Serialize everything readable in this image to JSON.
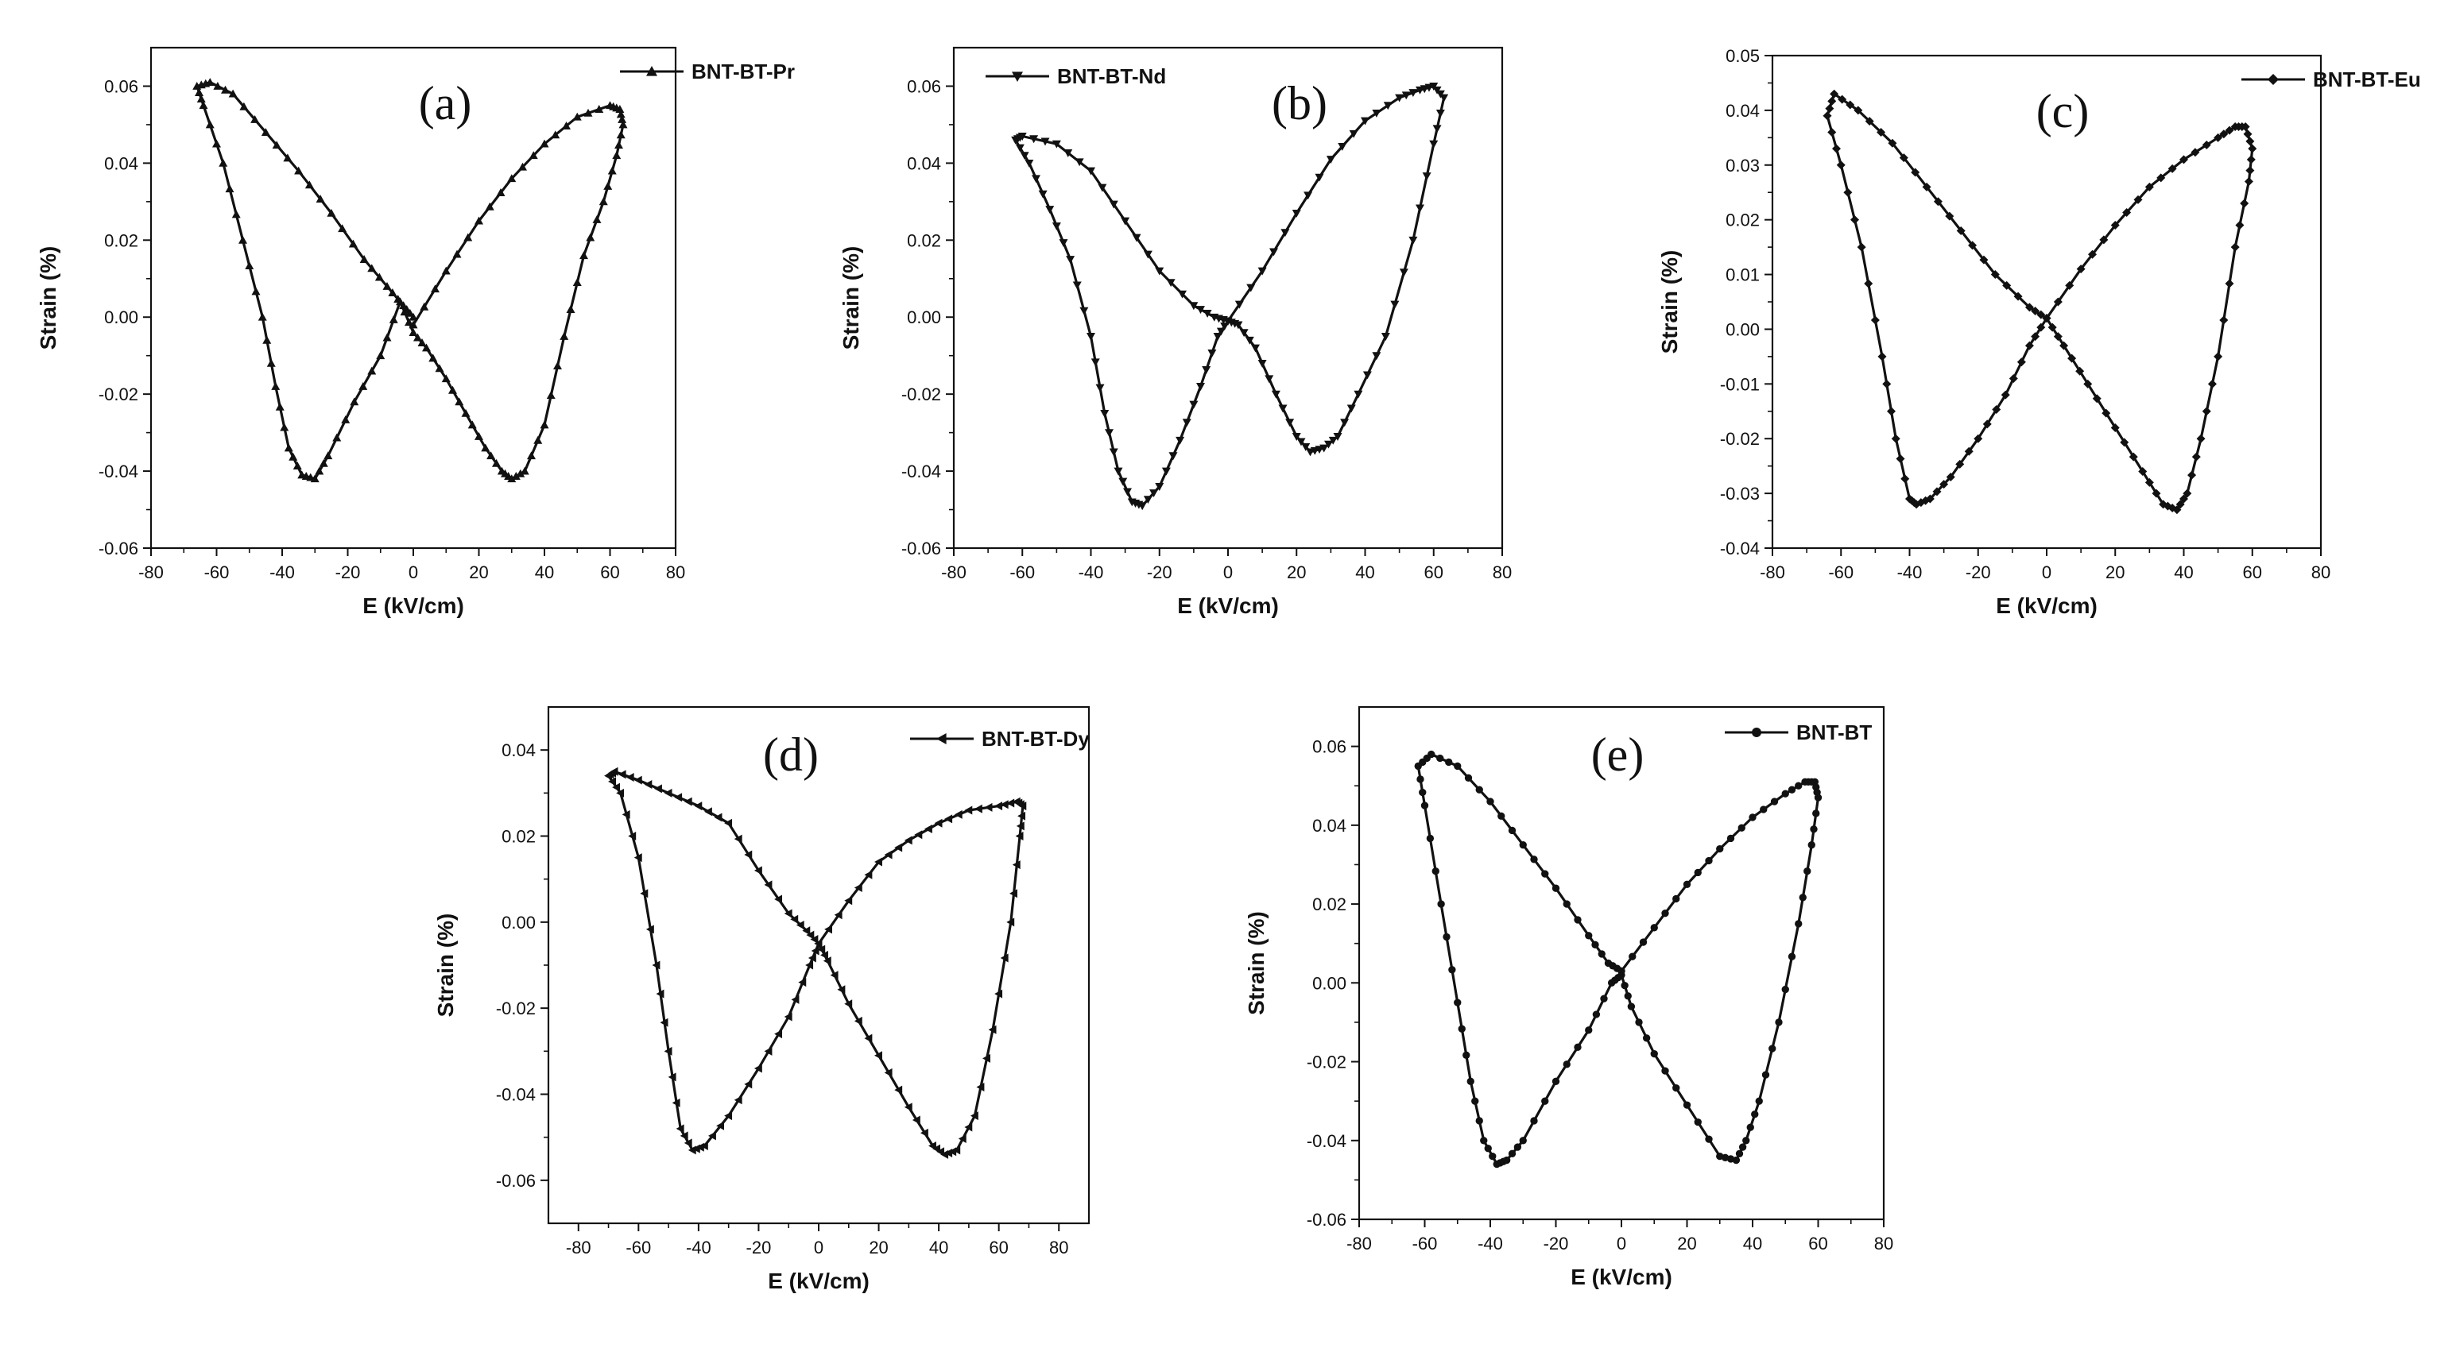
{
  "chart_data": [
    {
      "id": "a",
      "type": "line",
      "panel_label": "(a)",
      "series_name": "BNT-BT-Pr",
      "marker": "triangle-up",
      "xlabel": "E (kV/cm)",
      "ylabel": "Strain (%)",
      "xlim": [
        -80,
        80
      ],
      "ylim": [
        -0.06,
        0.07
      ],
      "xticks": [
        -80,
        -60,
        -40,
        -20,
        0,
        20,
        40,
        60,
        80
      ],
      "xtick_labels": [
        "-80",
        "-60",
        "-40",
        "-20",
        "0",
        "20",
        "40",
        "60",
        "80"
      ],
      "yticks": [
        -0.06,
        -0.04,
        -0.02,
        0.0,
        0.02,
        0.04,
        0.06
      ],
      "ytick_labels": [
        "-0.06",
        "-0.04",
        "-0.02",
        "0.00",
        "0.02",
        "0.04",
        "0.06"
      ],
      "x": [
        0,
        10,
        20,
        30,
        40,
        50,
        60,
        63,
        64,
        62,
        58,
        52,
        46,
        40,
        34,
        30,
        27,
        22,
        16,
        10,
        4,
        0,
        -4,
        -10,
        -18,
        -26,
        -30,
        -34,
        -38,
        -42,
        -46,
        -52,
        -58,
        -64,
        -66,
        -62,
        -55,
        -45,
        -35,
        -25,
        -15,
        -8,
        -3,
        0
      ],
      "y": [
        -0.002,
        0.012,
        0.025,
        0.036,
        0.045,
        0.052,
        0.055,
        0.054,
        0.05,
        0.042,
        0.03,
        0.016,
        -0.005,
        -0.028,
        -0.04,
        -0.042,
        -0.04,
        -0.034,
        -0.025,
        -0.016,
        -0.008,
        -0.004,
        0.004,
        -0.01,
        -0.022,
        -0.036,
        -0.042,
        -0.041,
        -0.034,
        -0.018,
        0.0,
        0.02,
        0.04,
        0.055,
        0.06,
        0.061,
        0.058,
        0.048,
        0.038,
        0.027,
        0.015,
        0.008,
        0.003,
        0.0
      ]
    },
    {
      "id": "b",
      "type": "line",
      "panel_label": "(b)",
      "series_name": "BNT-BT-Nd",
      "marker": "triangle-down",
      "xlabel": "E (kV/cm)",
      "ylabel": "Strain (%)",
      "xlim": [
        -80,
        80
      ],
      "ylim": [
        -0.06,
        0.07
      ],
      "xticks": [
        -80,
        -60,
        -40,
        -20,
        0,
        20,
        40,
        60,
        80
      ],
      "xtick_labels": [
        "-80",
        "-60",
        "-40",
        "-20",
        "0",
        "20",
        "40",
        "60",
        "80"
      ],
      "yticks": [
        -0.06,
        -0.04,
        -0.02,
        0.0,
        0.02,
        0.04,
        0.06
      ],
      "ytick_labels": [
        "-0.06",
        "-0.04",
        "-0.02",
        "0.00",
        "0.02",
        "0.04",
        "0.06"
      ],
      "x": [
        0,
        10,
        20,
        30,
        40,
        50,
        56,
        60,
        63,
        60,
        54,
        46,
        38,
        32,
        28,
        24,
        20,
        14,
        8,
        3,
        0,
        -3,
        -8,
        -14,
        -20,
        -25,
        -28,
        -32,
        -36,
        -40,
        -46,
        -52,
        -58,
        -62,
        -60,
        -50,
        -40,
        -30,
        -20,
        -10,
        -4,
        0
      ],
      "y": [
        -0.001,
        0.012,
        0.027,
        0.041,
        0.051,
        0.057,
        0.059,
        0.06,
        0.057,
        0.045,
        0.02,
        -0.005,
        -0.02,
        -0.031,
        -0.034,
        -0.035,
        -0.031,
        -0.02,
        -0.008,
        -0.002,
        -0.001,
        -0.005,
        -0.018,
        -0.032,
        -0.044,
        -0.049,
        -0.048,
        -0.04,
        -0.025,
        -0.005,
        0.015,
        0.028,
        0.04,
        0.046,
        0.047,
        0.045,
        0.038,
        0.025,
        0.012,
        0.003,
        0.0,
        -0.001
      ]
    },
    {
      "id": "c",
      "type": "line",
      "panel_label": "(c)",
      "series_name": "BNT-BT-Eu",
      "marker": "diamond",
      "xlabel": "E (kV/cm)",
      "ylabel": "Strain (%)",
      "xlim": [
        -80,
        80
      ],
      "ylim": [
        -0.04,
        0.05
      ],
      "xticks": [
        -80,
        -60,
        -40,
        -20,
        0,
        20,
        40,
        60,
        80
      ],
      "xtick_labels": [
        "-80",
        "-60",
        "-40",
        "-20",
        "0",
        "20",
        "40",
        "60",
        "80"
      ],
      "yticks": [
        -0.04,
        -0.03,
        -0.02,
        -0.01,
        0.0,
        0.01,
        0.02,
        0.03,
        0.04,
        0.05
      ],
      "ytick_labels": [
        "-0.04",
        "-0.03",
        "-0.02",
        "-0.01",
        "0.00",
        "0.01",
        "0.02",
        "0.03",
        "0.04",
        "0.05"
      ],
      "x": [
        0,
        10,
        20,
        30,
        40,
        50,
        55,
        58,
        60,
        59,
        55,
        50,
        45,
        41,
        38,
        34,
        28,
        20,
        12,
        5,
        0,
        -5,
        -12,
        -20,
        -28,
        -34,
        -38,
        -40,
        -44,
        -48,
        -54,
        -60,
        -64,
        -62,
        -55,
        -45,
        -35,
        -25,
        -15,
        -5,
        0
      ],
      "y": [
        0.002,
        0.011,
        0.019,
        0.026,
        0.031,
        0.035,
        0.037,
        0.037,
        0.033,
        0.027,
        0.015,
        -0.005,
        -0.02,
        -0.03,
        -0.033,
        -0.032,
        -0.026,
        -0.018,
        -0.01,
        -0.003,
        0.002,
        -0.003,
        -0.012,
        -0.02,
        -0.027,
        -0.031,
        -0.032,
        -0.031,
        -0.02,
        -0.005,
        0.015,
        0.03,
        0.039,
        0.043,
        0.04,
        0.034,
        0.026,
        0.018,
        0.01,
        0.004,
        0.002
      ]
    },
    {
      "id": "d",
      "type": "line",
      "panel_label": "(d)",
      "series_name": "BNT-BT-Dy",
      "marker": "triangle-left",
      "xlabel": "E (kV/cm)",
      "ylabel": "Strain (%)",
      "xlim": [
        -90,
        90
      ],
      "ylim": [
        -0.07,
        0.05
      ],
      "xticks": [
        -80,
        -60,
        -40,
        -20,
        0,
        20,
        40,
        60,
        80
      ],
      "xtick_labels": [
        "-80",
        "-60",
        "-40",
        "-20",
        "0",
        "20",
        "40",
        "60",
        "80"
      ],
      "yticks": [
        -0.06,
        -0.04,
        -0.02,
        0.0,
        0.02,
        0.04
      ],
      "ytick_labels": [
        "-0.06",
        "-0.04",
        "-0.02",
        "0.00",
        "0.02",
        "0.04"
      ],
      "x": [
        0,
        10,
        20,
        30,
        40,
        50,
        60,
        66,
        68,
        67,
        64,
        58,
        52,
        46,
        42,
        38,
        30,
        20,
        10,
        3,
        0,
        -3,
        -10,
        -20,
        -30,
        -38,
        -42,
        -46,
        -50,
        -54,
        -60,
        -66,
        -70,
        -68,
        -60,
        -50,
        -40,
        -30,
        -20,
        -10,
        -4,
        0
      ],
      "y": [
        -0.005,
        0.005,
        0.014,
        0.019,
        0.023,
        0.026,
        0.027,
        0.028,
        0.027,
        0.02,
        0.0,
        -0.025,
        -0.045,
        -0.053,
        -0.054,
        -0.052,
        -0.043,
        -0.031,
        -0.019,
        -0.009,
        -0.005,
        -0.01,
        -0.022,
        -0.034,
        -0.045,
        -0.052,
        -0.053,
        -0.048,
        -0.03,
        -0.01,
        0.015,
        0.03,
        0.034,
        0.035,
        0.033,
        0.03,
        0.027,
        0.023,
        0.012,
        0.002,
        -0.002,
        -0.005
      ]
    },
    {
      "id": "e",
      "type": "line",
      "panel_label": "(e)",
      "series_name": "BNT-BT",
      "marker": "circle",
      "xlabel": "E (kV/cm)",
      "ylabel": "Strain (%)",
      "xlim": [
        -80,
        80
      ],
      "ylim": [
        -0.06,
        0.07
      ],
      "xticks": [
        -80,
        -60,
        -40,
        -20,
        0,
        20,
        40,
        60,
        80
      ],
      "xtick_labels": [
        "-80",
        "-60",
        "-40",
        "-20",
        "0",
        "20",
        "40",
        "60",
        "80"
      ],
      "yticks": [
        -0.06,
        -0.04,
        -0.02,
        0.0,
        0.02,
        0.04,
        0.06
      ],
      "ytick_labels": [
        "-0.06",
        "-0.04",
        "-0.02",
        "0.00",
        "0.02",
        "0.04",
        "0.06"
      ],
      "x": [
        0,
        10,
        20,
        30,
        40,
        50,
        56,
        59,
        60,
        58,
        54,
        48,
        42,
        38,
        35,
        30,
        20,
        10,
        3,
        0,
        -3,
        -10,
        -20,
        -30,
        -35,
        -38,
        -42,
        -46,
        -50,
        -55,
        -60,
        -62,
        -58,
        -50,
        -40,
        -30,
        -20,
        -10,
        -4,
        0
      ],
      "y": [
        0.003,
        0.014,
        0.025,
        0.034,
        0.042,
        0.048,
        0.051,
        0.051,
        0.047,
        0.035,
        0.015,
        -0.01,
        -0.03,
        -0.04,
        -0.045,
        -0.044,
        -0.031,
        -0.018,
        -0.006,
        0.002,
        0.0,
        -0.012,
        -0.025,
        -0.04,
        -0.045,
        -0.046,
        -0.04,
        -0.025,
        -0.005,
        0.02,
        0.045,
        0.055,
        0.058,
        0.055,
        0.046,
        0.035,
        0.024,
        0.012,
        0.005,
        0.003
      ]
    }
  ]
}
